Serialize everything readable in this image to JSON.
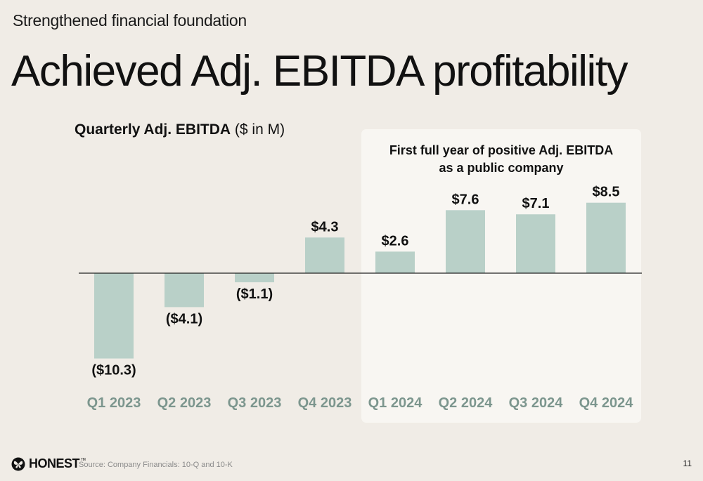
{
  "slide": {
    "kicker": "Strengthened financial foundation",
    "headline": "Achieved Adj. EBITDA profitability",
    "chart_title_bold": "Quarterly Adj. EBITDA",
    "chart_title_rest": " ($ in M)",
    "highlight_line1": "First full year of positive Adj. EBITDA",
    "highlight_line2": "as a public company",
    "logo_text": "HONEST",
    "logo_mark": "TM",
    "source": "Source: Company Financials: 10-Q and 10-K",
    "page_number": "11"
  },
  "colors": {
    "bar": "#b9d0c8",
    "axis_label": "#7c968e",
    "highlight_bg": "#f8f6f2",
    "background": "#f0ece6"
  },
  "chart_data": {
    "type": "bar",
    "title": "Quarterly Adj. EBITDA ($ in M)",
    "categories": [
      "Q1 2023",
      "Q2 2023",
      "Q3 2023",
      "Q4 2023",
      "Q1 2024",
      "Q2 2024",
      "Q3 2024",
      "Q4 2024"
    ],
    "values": [
      -10.3,
      -4.1,
      -1.1,
      4.3,
      2.6,
      7.6,
      7.1,
      8.5
    ],
    "data_labels": [
      "($10.3)",
      "($4.1)",
      "($1.1)",
      "$4.3",
      "$2.6",
      "$7.6",
      "$7.1",
      "$8.5"
    ],
    "xlabel": "",
    "ylabel": "",
    "grid": false,
    "legend": "none"
  }
}
